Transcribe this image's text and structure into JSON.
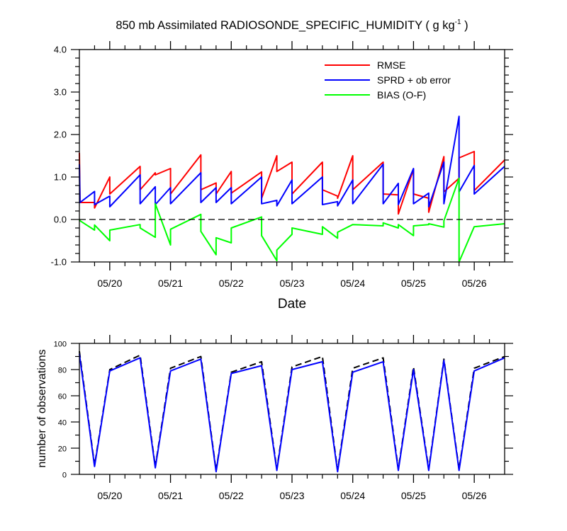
{
  "title": {
    "main": "850 mb Assimilated RADIOSONDE_SPECIFIC_HUMIDITY ( g kg",
    "sup": "-1",
    "end": " )"
  },
  "colors": {
    "rmse": "#ff0000",
    "sprd": "#0000ff",
    "bias": "#00ff00",
    "frame": "#000000"
  },
  "chart_data": [
    {
      "type": "line",
      "title": "850 mb Assimilated RADIOSONDE_SPECIFIC_HUMIDITY ( g kg-1 )",
      "xlabel": "Date",
      "ylabel": "",
      "x_tick_labels": [
        "05/20",
        "05/21",
        "05/22",
        "05/23",
        "05/24",
        "05/25",
        "05/26"
      ],
      "y_tick_labels": [
        "-1.0",
        "0.0",
        "1.0",
        "2.0",
        "3.0",
        "4.0"
      ],
      "x_unit": "days (tick label 05/20 at 1, 05/26 at 7)",
      "xlim": [
        0.5,
        7.5
      ],
      "ylim": [
        -1.0,
        4.0
      ],
      "reference_line": 0.0,
      "legend": {
        "position": "top-right",
        "entries": [
          "RMSE",
          "SPRD + ob error",
          "BIAS (O-F)"
        ]
      },
      "series": [
        {
          "name": "RMSE",
          "color": "#ff0000",
          "points": [
            [
              0.5,
              1.57
            ],
            [
              0.51,
              0.4
            ],
            [
              0.75,
              0.4
            ],
            [
              0.75,
              0.27
            ],
            [
              1.0,
              1.0
            ],
            [
              1.0,
              0.6
            ],
            [
              1.5,
              1.25
            ],
            [
              1.5,
              0.7
            ],
            [
              1.75,
              1.1
            ],
            [
              1.75,
              1.05
            ],
            [
              2.0,
              1.2
            ],
            [
              2.0,
              0.6
            ],
            [
              2.5,
              1.52
            ],
            [
              2.5,
              0.7
            ],
            [
              2.75,
              0.86
            ],
            [
              2.75,
              0.6
            ],
            [
              3.0,
              1.13
            ],
            [
              3.0,
              0.62
            ],
            [
              3.5,
              1.12
            ],
            [
              3.5,
              0.5
            ],
            [
              3.75,
              1.5
            ],
            [
              3.75,
              1.13
            ],
            [
              4.0,
              1.35
            ],
            [
              4.0,
              0.6
            ],
            [
              4.5,
              1.35
            ],
            [
              4.5,
              0.7
            ],
            [
              4.75,
              0.55
            ],
            [
              4.75,
              0.5
            ],
            [
              5.0,
              1.5
            ],
            [
              5.0,
              0.7
            ],
            [
              5.5,
              1.35
            ],
            [
              5.5,
              0.6
            ],
            [
              5.75,
              0.58
            ],
            [
              5.75,
              0.13
            ],
            [
              6.0,
              1.18
            ],
            [
              6.0,
              0.6
            ],
            [
              6.25,
              0.5
            ],
            [
              6.25,
              0.17
            ],
            [
              6.5,
              1.48
            ],
            [
              6.5,
              0.65
            ],
            [
              6.75,
              0.97
            ],
            [
              6.75,
              1.45
            ],
            [
              7.0,
              1.6
            ],
            [
              7.0,
              0.68
            ],
            [
              7.5,
              1.4
            ]
          ]
        },
        {
          "name": "SPRD + ob error",
          "color": "#0000ff",
          "points": [
            [
              0.5,
              1.3
            ],
            [
              0.51,
              0.4
            ],
            [
              0.75,
              0.66
            ],
            [
              0.75,
              0.35
            ],
            [
              1.0,
              0.55
            ],
            [
              1.0,
              0.3
            ],
            [
              1.5,
              1.05
            ],
            [
              1.5,
              0.37
            ],
            [
              1.75,
              0.77
            ],
            [
              1.75,
              0.35
            ],
            [
              2.0,
              0.75
            ],
            [
              2.0,
              0.37
            ],
            [
              2.5,
              1.1
            ],
            [
              2.5,
              0.4
            ],
            [
              2.75,
              0.75
            ],
            [
              2.75,
              0.4
            ],
            [
              3.0,
              0.75
            ],
            [
              3.0,
              0.37
            ],
            [
              3.5,
              1.0
            ],
            [
              3.5,
              0.37
            ],
            [
              3.75,
              0.45
            ],
            [
              3.75,
              0.32
            ],
            [
              4.0,
              0.93
            ],
            [
              4.0,
              0.37
            ],
            [
              4.5,
              1.0
            ],
            [
              4.5,
              0.35
            ],
            [
              4.75,
              0.42
            ],
            [
              4.75,
              0.32
            ],
            [
              5.0,
              0.93
            ],
            [
              5.0,
              0.37
            ],
            [
              5.5,
              1.3
            ],
            [
              5.5,
              0.37
            ],
            [
              5.75,
              0.85
            ],
            [
              5.75,
              0.35
            ],
            [
              6.0,
              1.2
            ],
            [
              6.0,
              0.37
            ],
            [
              6.25,
              0.62
            ],
            [
              6.25,
              0.3
            ],
            [
              6.5,
              1.35
            ],
            [
              6.5,
              0.37
            ],
            [
              6.75,
              2.43
            ],
            [
              6.75,
              0.65
            ],
            [
              7.0,
              1.27
            ],
            [
              7.0,
              0.6
            ],
            [
              7.5,
              1.25
            ]
          ]
        },
        {
          "name": "BIAS (O-F)",
          "color": "#00ff00",
          "points": [
            [
              0.5,
              0.0
            ],
            [
              0.51,
              -0.03
            ],
            [
              0.75,
              -0.25
            ],
            [
              0.75,
              -0.13
            ],
            [
              1.0,
              -0.5
            ],
            [
              1.0,
              -0.25
            ],
            [
              1.5,
              -0.12
            ],
            [
              1.5,
              -0.2
            ],
            [
              1.75,
              -0.42
            ],
            [
              1.75,
              0.37
            ],
            [
              2.0,
              -0.6
            ],
            [
              2.0,
              -0.23
            ],
            [
              2.5,
              0.12
            ],
            [
              2.5,
              -0.28
            ],
            [
              2.75,
              -0.83
            ],
            [
              2.75,
              -0.43
            ],
            [
              3.0,
              -0.55
            ],
            [
              3.0,
              -0.2
            ],
            [
              3.5,
              0.06
            ],
            [
              3.5,
              -0.38
            ],
            [
              3.75,
              -0.97
            ],
            [
              3.75,
              -0.72
            ],
            [
              4.0,
              -0.35
            ],
            [
              4.0,
              -0.2
            ],
            [
              4.5,
              -0.35
            ],
            [
              4.5,
              -0.17
            ],
            [
              4.75,
              -0.44
            ],
            [
              4.75,
              -0.3
            ],
            [
              5.0,
              -0.12
            ],
            [
              5.0,
              -0.12
            ],
            [
              5.5,
              -0.15
            ],
            [
              5.5,
              -0.08
            ],
            [
              5.75,
              -0.2
            ],
            [
              5.75,
              -0.12
            ],
            [
              6.0,
              -0.38
            ],
            [
              6.0,
              -0.15
            ],
            [
              6.25,
              -0.12
            ],
            [
              6.25,
              -0.1
            ],
            [
              6.5,
              -0.18
            ],
            [
              6.5,
              -0.03
            ],
            [
              6.75,
              0.97
            ],
            [
              6.75,
              -1.0
            ],
            [
              7.0,
              -0.17
            ],
            [
              7.0,
              -0.17
            ],
            [
              7.5,
              -0.1
            ]
          ]
        }
      ]
    },
    {
      "type": "line",
      "title": "",
      "xlabel": "",
      "ylabel": "number of observations",
      "x_tick_labels": [
        "05/20",
        "05/21",
        "05/22",
        "05/23",
        "05/24",
        "05/25",
        "05/26"
      ],
      "y_tick_labels": [
        "0",
        "20",
        "40",
        "60",
        "80",
        "100"
      ],
      "x_unit": "days (tick label 05/20 at 1, 05/26 at 7)",
      "xlim": [
        0.5,
        7.5
      ],
      "ylim": [
        0,
        100
      ],
      "series": [
        {
          "name": "",
          "color": "#000000",
          "dashed": true,
          "points": [
            [
              0.5,
              94
            ],
            [
              0.75,
              7
            ],
            [
              1.0,
              80
            ],
            [
              1.5,
              91
            ],
            [
              1.75,
              6
            ],
            [
              2.0,
              81
            ],
            [
              2.5,
              90
            ],
            [
              2.75,
              3
            ],
            [
              3.0,
              78
            ],
            [
              3.5,
              86
            ],
            [
              3.75,
              4
            ],
            [
              4.0,
              82
            ],
            [
              4.5,
              90
            ],
            [
              4.75,
              3
            ],
            [
              5.0,
              81
            ],
            [
              5.5,
              89
            ],
            [
              5.75,
              4
            ],
            [
              6.0,
              82
            ],
            [
              6.25,
              4
            ],
            [
              6.5,
              88
            ],
            [
              6.75,
              4
            ],
            [
              7.0,
              81
            ],
            [
              7.5,
              90
            ]
          ]
        },
        {
          "name": "",
          "color": "#0000ff",
          "dashed": false,
          "points": [
            [
              0.5,
              92
            ],
            [
              0.75,
              6
            ],
            [
              1.0,
              79
            ],
            [
              1.5,
              89
            ],
            [
              1.75,
              5
            ],
            [
              2.0,
              79
            ],
            [
              2.5,
              88
            ],
            [
              2.75,
              2
            ],
            [
              3.0,
              77
            ],
            [
              3.5,
              83
            ],
            [
              3.75,
              3
            ],
            [
              4.0,
              80
            ],
            [
              4.5,
              86
            ],
            [
              4.75,
              2
            ],
            [
              5.0,
              78
            ],
            [
              5.5,
              86
            ],
            [
              5.75,
              3
            ],
            [
              6.0,
              80
            ],
            [
              6.25,
              3
            ],
            [
              6.5,
              87
            ],
            [
              6.75,
              3
            ],
            [
              7.0,
              79
            ],
            [
              7.5,
              89
            ]
          ]
        }
      ]
    }
  ]
}
